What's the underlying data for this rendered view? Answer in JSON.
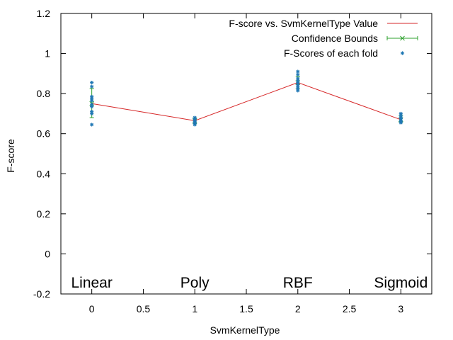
{
  "chart_data": {
    "type": "line",
    "title": "",
    "xlabel": "SvmKernelType",
    "ylabel": "F-score",
    "xlim": [
      -0.3,
      3.3
    ],
    "ylim": [
      -0.2,
      1.2
    ],
    "xticks": [
      "0",
      "0.5",
      "1",
      "1.5",
      "2",
      "2.5",
      "3"
    ],
    "yticks": [
      "-0.2",
      "0",
      "0.2",
      "0.4",
      "0.6",
      "0.8",
      "1",
      "1.2"
    ],
    "grid": false,
    "legend_position": "top-right",
    "category_labels": [
      {
        "x": 0,
        "text": "Linear"
      },
      {
        "x": 1,
        "text": "Poly"
      },
      {
        "x": 2,
        "text": "RBF"
      },
      {
        "x": 3,
        "text": "Sigmoid"
      }
    ],
    "series": [
      {
        "name": "F-score vs. SvmKernelType Value",
        "kind": "line",
        "color": "#d62728",
        "x": [
          0,
          1,
          2,
          3
        ],
        "y": [
          0.75,
          0.665,
          0.855,
          0.67
        ]
      },
      {
        "name": "Confidence Bounds",
        "kind": "errorbar",
        "color": "#2ca02c",
        "x": [
          0,
          1,
          2,
          3
        ],
        "y": [
          0.75,
          0.665,
          0.855,
          0.67
        ],
        "lower": [
          0.68,
          0.65,
          0.825,
          0.655
        ],
        "upper": [
          0.825,
          0.68,
          0.885,
          0.69
        ]
      },
      {
        "name": "F-Scores of each fold",
        "kind": "scatter",
        "color": "#1f77b4",
        "points": [
          {
            "x": 0,
            "y": 0.855
          },
          {
            "x": 0,
            "y": 0.835
          },
          {
            "x": 0,
            "y": 0.785
          },
          {
            "x": 0,
            "y": 0.775
          },
          {
            "x": 0,
            "y": 0.765
          },
          {
            "x": 0,
            "y": 0.745
          },
          {
            "x": 0,
            "y": 0.735
          },
          {
            "x": 0,
            "y": 0.71
          },
          {
            "x": 0,
            "y": 0.7
          },
          {
            "x": 0,
            "y": 0.645
          },
          {
            "x": 1,
            "y": 0.68
          },
          {
            "x": 1,
            "y": 0.675
          },
          {
            "x": 1,
            "y": 0.67
          },
          {
            "x": 1,
            "y": 0.665
          },
          {
            "x": 1,
            "y": 0.66
          },
          {
            "x": 1,
            "y": 0.655
          },
          {
            "x": 1,
            "y": 0.65
          },
          {
            "x": 1,
            "y": 0.645
          },
          {
            "x": 2,
            "y": 0.91
          },
          {
            "x": 2,
            "y": 0.895
          },
          {
            "x": 2,
            "y": 0.875
          },
          {
            "x": 2,
            "y": 0.865
          },
          {
            "x": 2,
            "y": 0.855
          },
          {
            "x": 2,
            "y": 0.845
          },
          {
            "x": 2,
            "y": 0.835
          },
          {
            "x": 2,
            "y": 0.825
          },
          {
            "x": 2,
            "y": 0.815
          },
          {
            "x": 3,
            "y": 0.7
          },
          {
            "x": 3,
            "y": 0.69
          },
          {
            "x": 3,
            "y": 0.68
          },
          {
            "x": 3,
            "y": 0.675
          },
          {
            "x": 3,
            "y": 0.665
          },
          {
            "x": 3,
            "y": 0.66
          },
          {
            "x": 3,
            "y": 0.655
          }
        ]
      }
    ]
  }
}
